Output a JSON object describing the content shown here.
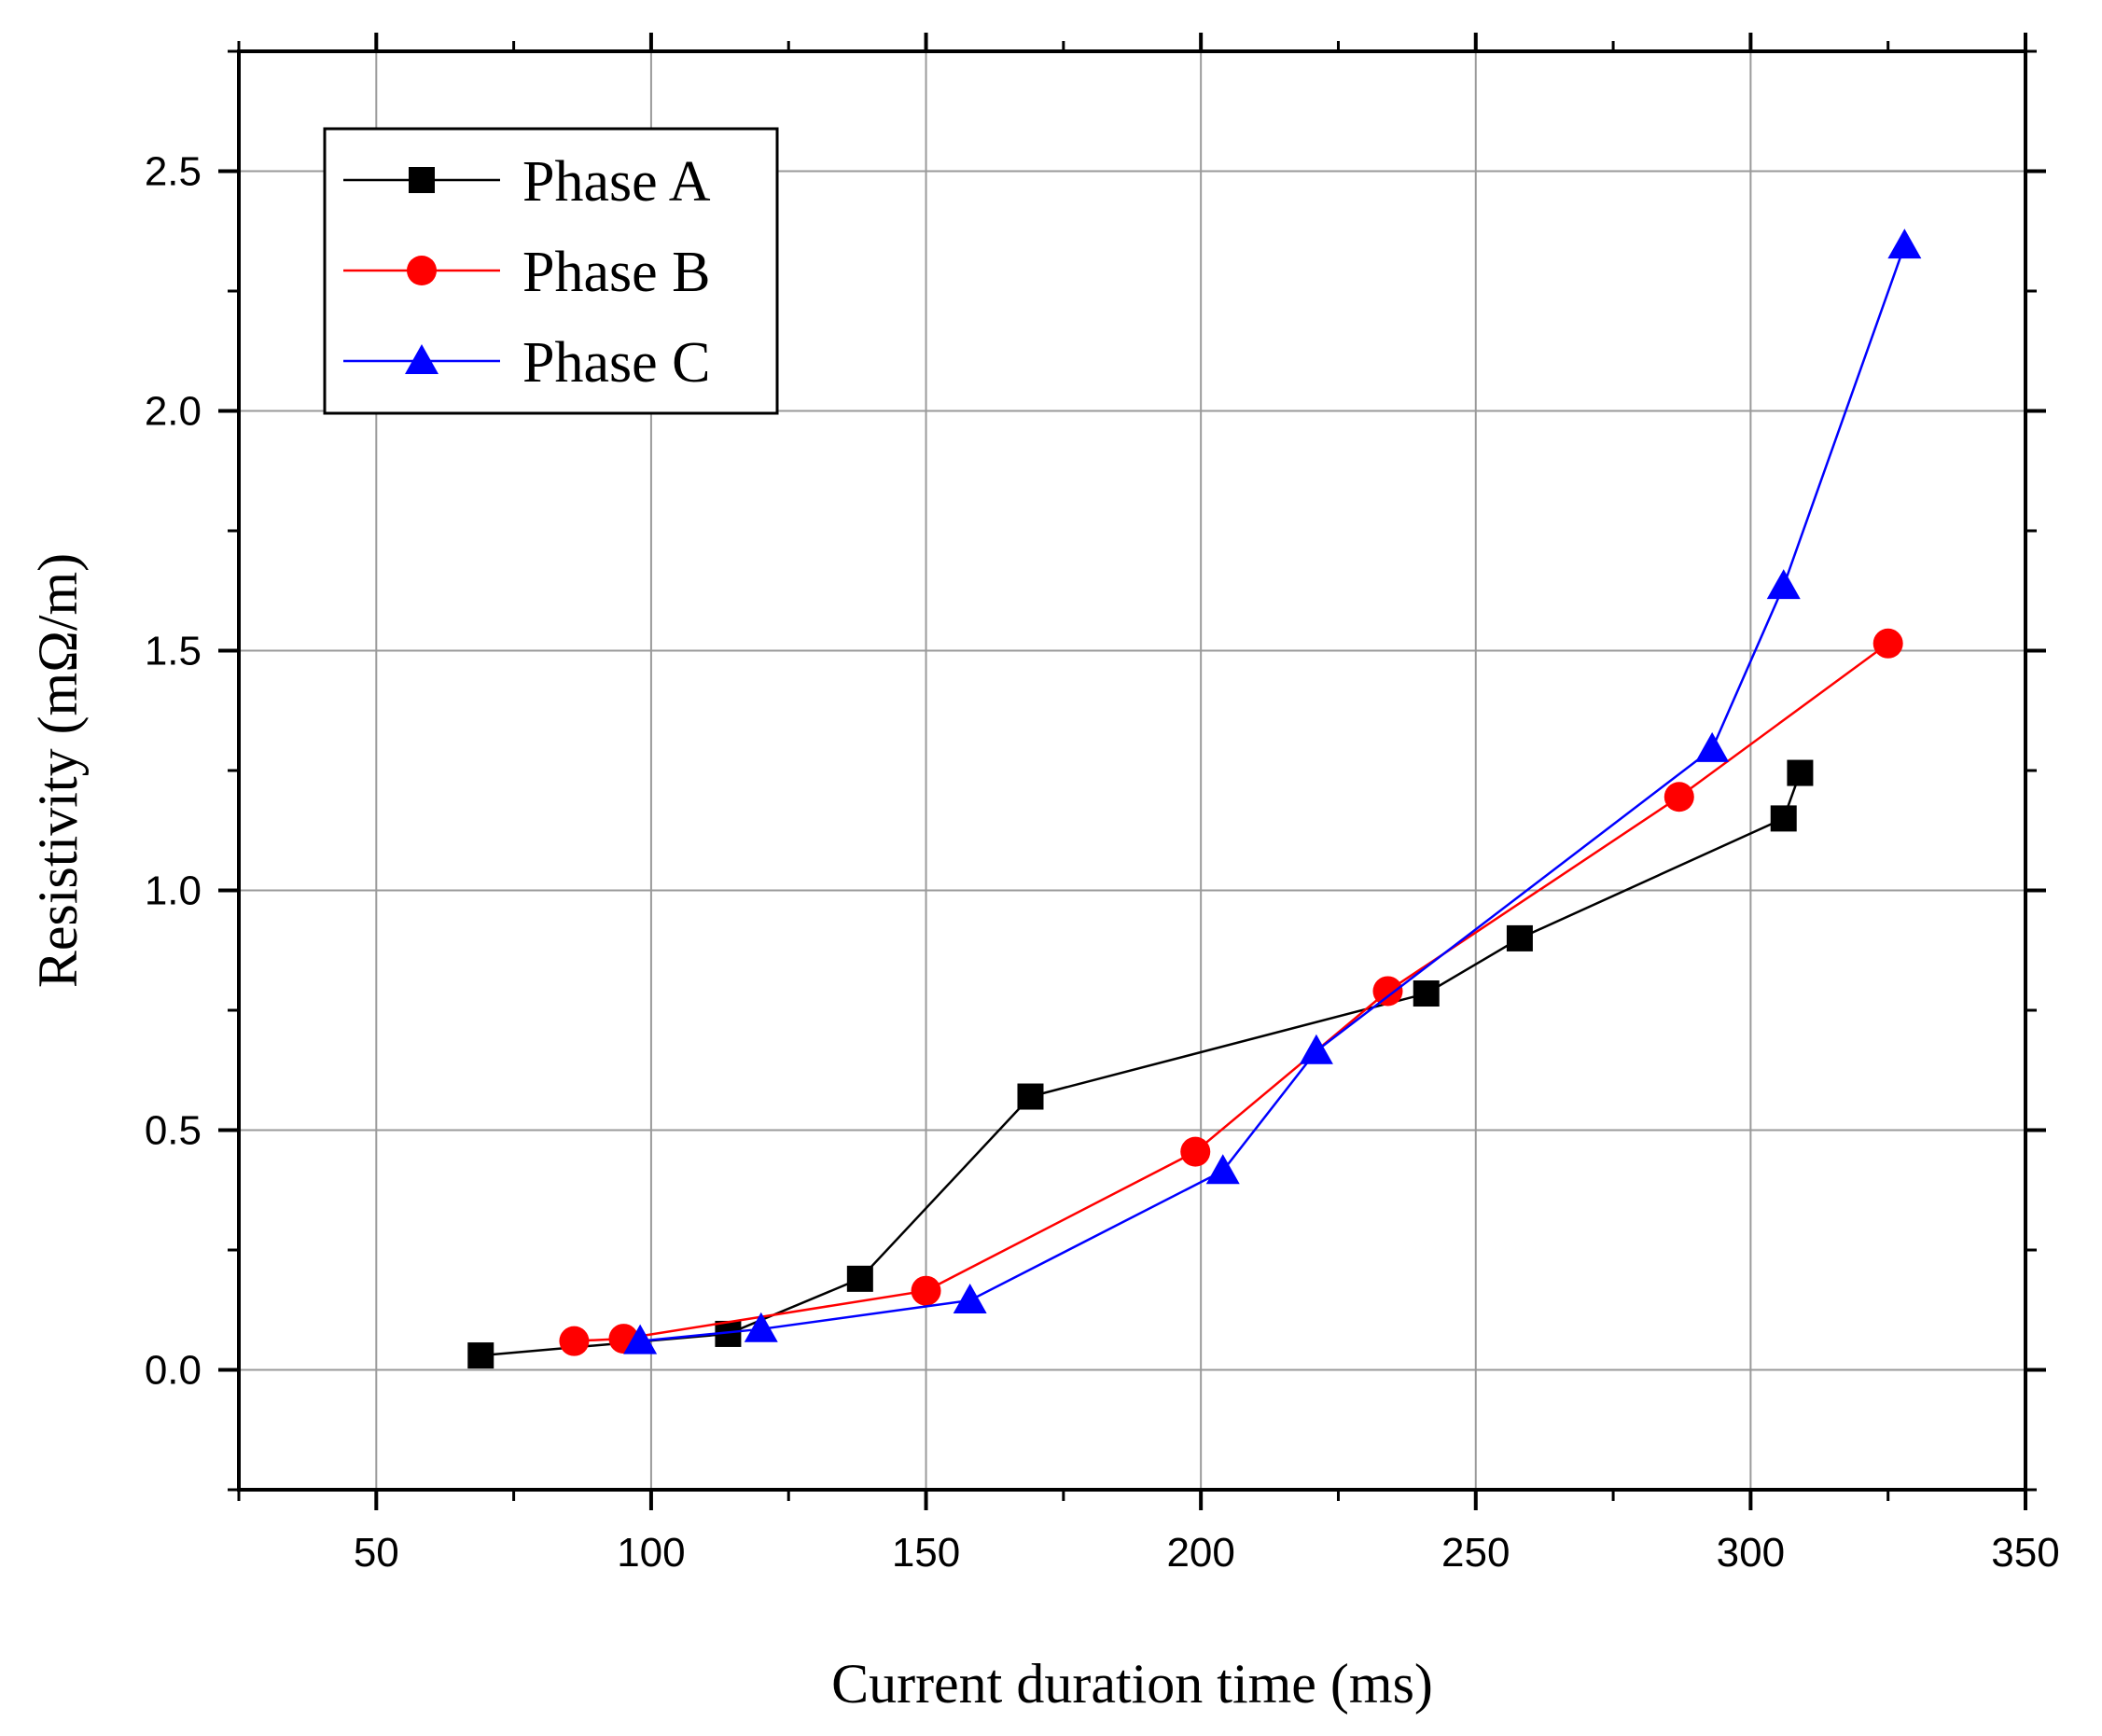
{
  "chart_data": {
    "type": "line",
    "title": "",
    "xlabel": "Current duration time (ms)",
    "ylabel": "Resistivity (mΩ/m)",
    "xlim": [
      25,
      350
    ],
    "ylim": [
      -0.25,
      2.75
    ],
    "xticks": [
      50,
      100,
      150,
      200,
      250,
      300,
      350
    ],
    "yticks": [
      0.0,
      0.5,
      1.0,
      1.5,
      2.0,
      2.5
    ],
    "xtick_labels": [
      "50",
      "100",
      "150",
      "200",
      "250",
      "300",
      "350"
    ],
    "ytick_labels": [
      "0.0",
      "0.5",
      "1.0",
      "1.5",
      "2.0",
      "2.5"
    ],
    "grid": true,
    "legend_position": "top-left",
    "series": [
      {
        "name": "Phase A",
        "color": "#000000",
        "marker": "square",
        "x": [
          69,
          114,
          138,
          169,
          241,
          258,
          306,
          309
        ],
        "y": [
          0.03,
          0.075,
          0.19,
          0.57,
          0.785,
          0.9,
          1.15,
          1.245
        ]
      },
      {
        "name": "Phase B",
        "color": "#ff0000",
        "marker": "circle",
        "x": [
          86,
          95,
          150,
          199,
          234,
          287,
          325
        ],
        "y": [
          0.06,
          0.065,
          0.165,
          0.455,
          0.79,
          1.195,
          1.515
        ]
      },
      {
        "name": "Phase C",
        "color": "#0000ff",
        "marker": "triangle",
        "x": [
          98,
          120,
          158,
          204,
          221,
          293,
          306,
          328
        ],
        "y": [
          0.06,
          0.085,
          0.145,
          0.415,
          0.665,
          1.295,
          1.635,
          2.345
        ]
      }
    ]
  }
}
